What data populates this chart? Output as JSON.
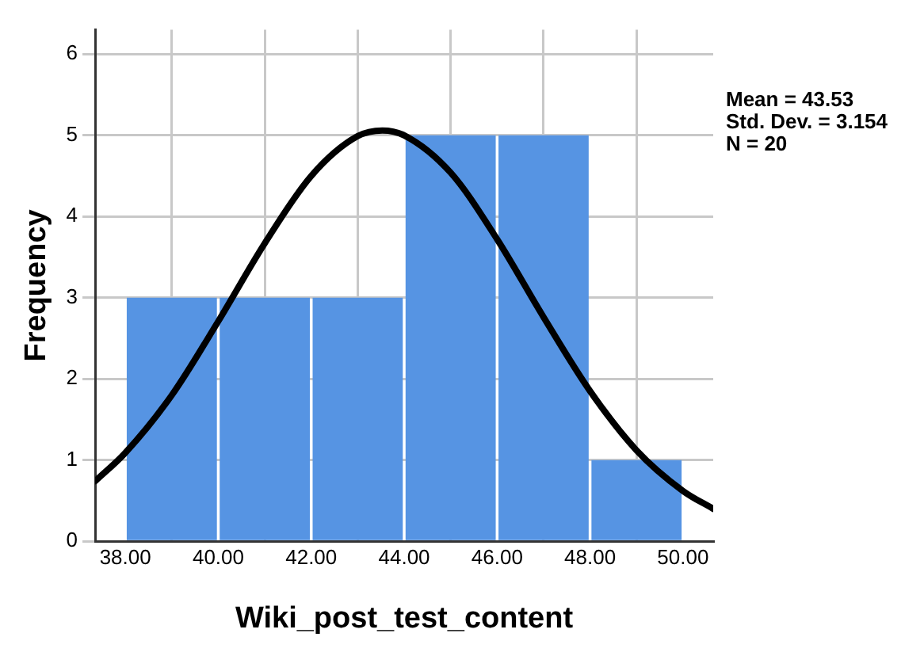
{
  "chart_data": {
    "type": "histogram",
    "xlabel": "Wiki_post_test_content",
    "ylabel": "Frequency",
    "bins": [
      38,
      40,
      42,
      44,
      46,
      48,
      50
    ],
    "values": [
      3,
      3,
      3,
      5,
      5,
      1
    ],
    "color": "#5694e3",
    "series": [
      {
        "type": "line",
        "color": "#000000",
        "x": [
          37.35,
          38,
          39,
          40,
          41,
          42,
          43,
          43.53,
          44,
          45,
          46,
          47,
          48,
          49,
          50,
          50.65
        ],
        "values": [
          0.74,
          1.09,
          1.8,
          2.71,
          3.67,
          4.5,
          4.99,
          5.06,
          5.0,
          4.54,
          3.72,
          2.76,
          1.85,
          1.12,
          0.62,
          0.4
        ]
      }
    ],
    "xlim": [
      37.35,
      50.65
    ],
    "xticks": [
      {
        "value": 38,
        "label": "38.00"
      },
      {
        "value": 40,
        "label": "40.00"
      },
      {
        "value": 42,
        "label": "42.00"
      },
      {
        "value": 44,
        "label": "44.00"
      },
      {
        "value": 46,
        "label": "46.00"
      },
      {
        "value": 48,
        "label": "48.00"
      },
      {
        "value": 50,
        "label": "50.00"
      }
    ],
    "ylim": [
      0,
      6.3
    ],
    "yticks": [
      0,
      1,
      2,
      3,
      4,
      5,
      6
    ],
    "grid": true,
    "legend": false,
    "marker": "none",
    "line_style": "solid",
    "annotations": [
      "Mean = 43.53",
      "Std. Dev. = 3.154",
      "N = 20"
    ]
  }
}
